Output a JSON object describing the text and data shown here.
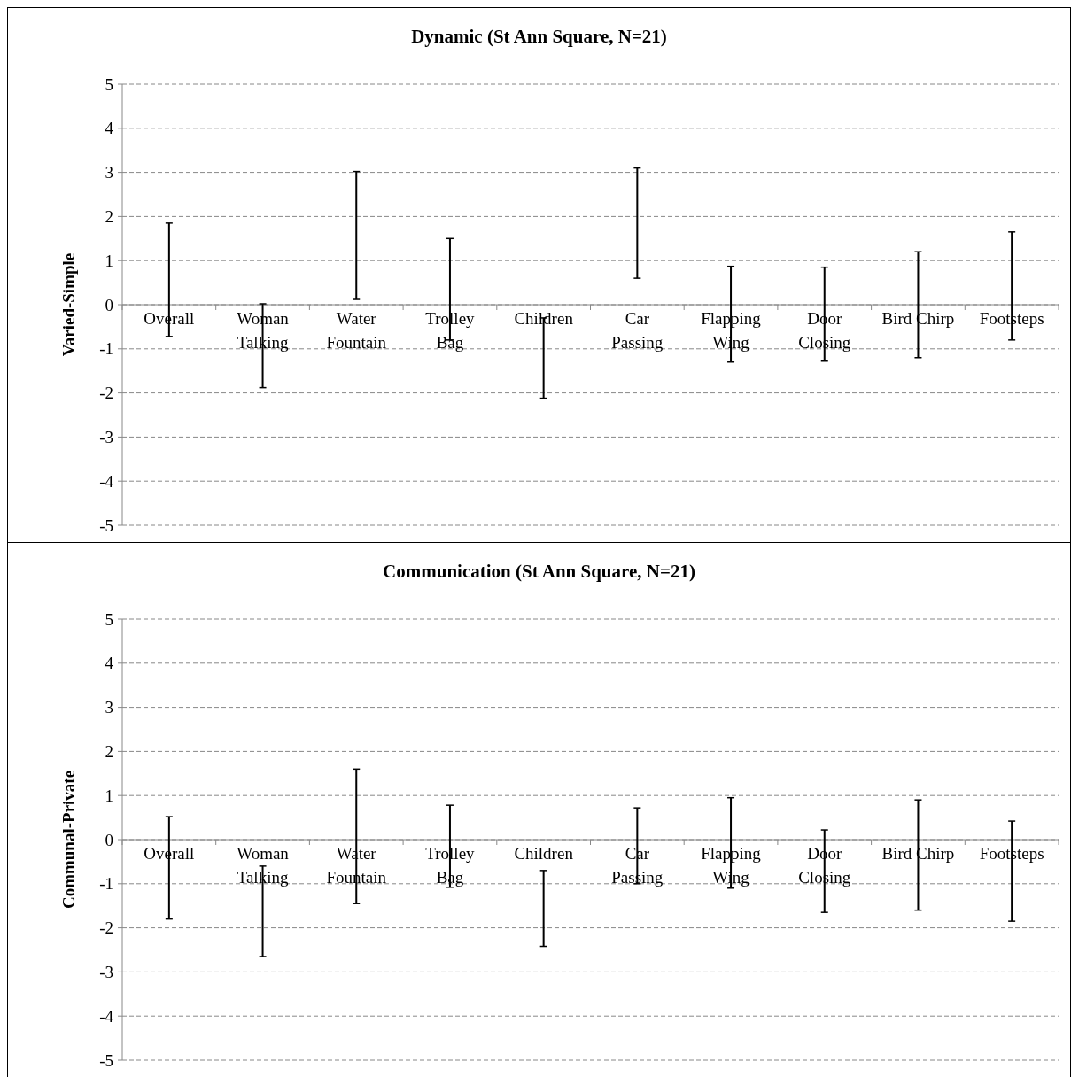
{
  "chart_data": [
    {
      "type": "bar",
      "title": "Dynamic (St Ann Square, N=21)",
      "ylabel": "Varied-Simple",
      "categories": [
        "Overall",
        "Woman Talking",
        "Water Fountain",
        "Trolley Bag",
        "Children",
        "Car Passing",
        "Flapping Wing",
        "Door Closing",
        "Bird Chirp",
        "Footsteps"
      ],
      "series": [
        {
          "color": "#000000",
          "base": [
            -0.72,
            -1.88,
            0.12,
            -0.8,
            -2.12,
            0.6,
            -1.3,
            -1.28,
            -1.2,
            -0.8
          ],
          "values": [
            2.57,
            1.9,
            2.9,
            2.3,
            1.82,
            2.5,
            2.17,
            2.13,
            2.4,
            2.45
          ]
        }
      ],
      "ylim": [
        -5,
        5
      ],
      "yticks": [
        -5,
        -4,
        -3,
        -2,
        -1,
        0,
        1,
        2,
        3,
        4,
        5
      ],
      "grid": "y"
    },
    {
      "type": "bar",
      "title": "Communication (St Ann Square, N=21)",
      "ylabel": "Communal-Private",
      "categories": [
        "Overall",
        "Woman Talking",
        "Water Fountain",
        "Trolley Bag",
        "Children",
        "Car Passing",
        "Flapping Wing",
        "Door Closing",
        "Bird Chirp",
        "Footsteps"
      ],
      "series": [
        {
          "color": "#000000",
          "base": [
            -1.8,
            -2.65,
            -1.45,
            -1.08,
            -2.42,
            -1.0,
            -1.1,
            -1.65,
            -1.6,
            -1.85
          ],
          "values": [
            2.32,
            2.05,
            3.05,
            1.86,
            1.72,
            1.72,
            2.05,
            1.87,
            2.5,
            2.27
          ]
        }
      ],
      "ylim": [
        -5,
        5
      ],
      "yticks": [
        -5,
        -4,
        -3,
        -2,
        -1,
        0,
        1,
        2,
        3,
        4,
        5
      ],
      "grid": "y"
    }
  ]
}
